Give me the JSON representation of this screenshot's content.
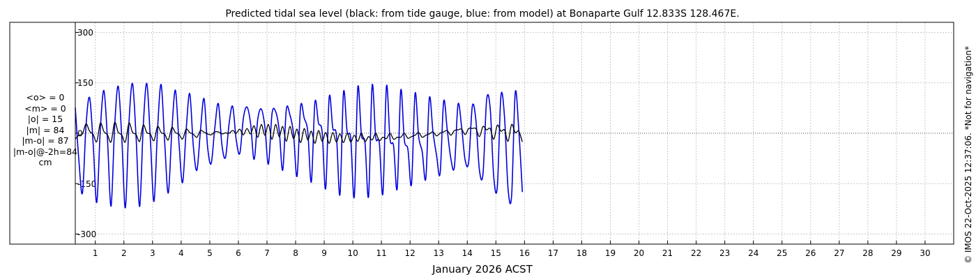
{
  "chart_data": {
    "type": "line",
    "title": "Predicted tidal sea level (black: from tide gauge, blue: from model) at Bonaparte Gulf 12.833S 128.467E.",
    "xlabel": "January 2026 ACST",
    "ylabel": "",
    "ylim": [
      -330,
      330
    ],
    "yticks": [
      -300,
      -150,
      0,
      150,
      300
    ],
    "ytick_labels": [
      "-300",
      "-150",
      "0",
      "150",
      "300"
    ],
    "xlim_days": [
      0.3,
      31.0
    ],
    "xticks": [
      1,
      2,
      3,
      4,
      5,
      6,
      7,
      8,
      9,
      10,
      11,
      12,
      13,
      14,
      15,
      16,
      17,
      18,
      19,
      20,
      21,
      22,
      23,
      24,
      25,
      26,
      27,
      28,
      29,
      30
    ],
    "xtick_labels": [
      "1",
      "2",
      "3",
      "4",
      "5",
      "6",
      "7",
      "8",
      "9",
      "10",
      "11",
      "12",
      "13",
      "14",
      "15",
      "16",
      "17",
      "18",
      "19",
      "20",
      "21",
      "22",
      "23",
      "24",
      "25",
      "26",
      "27",
      "28",
      "29",
      "30"
    ],
    "grid": true,
    "legend": "none",
    "series": [
      {
        "color": "#0000dd",
        "sampling_hours": 3,
        "t0_day": 0.3,
        "values": [
          76,
          -80,
          -178,
          23,
          106,
          -32,
          -206,
          12,
          127,
          -18,
          -217,
          20,
          140,
          -14,
          -222,
          30,
          148,
          -12,
          -218,
          22,
          148,
          -20,
          -203,
          12,
          145,
          -28,
          -178,
          8,
          128,
          -30,
          -147,
          10,
          118,
          -38,
          -110,
          8,
          103,
          -42,
          -90,
          15,
          88,
          -35,
          -72,
          28,
          80,
          -20,
          -60,
          45,
          78,
          30,
          -78,
          40,
          72,
          20,
          -92,
          58,
          65,
          10,
          -110,
          70,
          55,
          0,
          -128,
          80,
          45,
          5,
          -145,
          92,
          30,
          5,
          -165,
          108,
          15,
          -5,
          -183,
          122,
          5,
          -14,
          -190,
          137,
          -5,
          -28,
          -188,
          142,
          -12,
          -28,
          -180,
          140,
          -18,
          -38,
          -165,
          128,
          -20,
          -48,
          -152,
          118,
          -10,
          -55,
          -135,
          105,
          5,
          -65,
          -120,
          95,
          10,
          -75,
          -100,
          85,
          20,
          -80,
          -85,
          80,
          40,
          -110,
          -120,
          98,
          75,
          -130,
          -160,
          110,
          50,
          -165,
          -185,
          120,
          10,
          -175
        ]
      },
      {
        "color": "#000000",
        "sampling_hours": 3,
        "t0_day": 0.3,
        "values": [
          -17,
          -6,
          -2,
          28,
          6,
          -4,
          -25,
          30,
          5,
          -5,
          -26,
          32,
          3,
          -5,
          -26,
          30,
          3,
          -4,
          -24,
          24,
          2,
          -3,
          -22,
          20,
          2,
          -3,
          -20,
          17,
          2,
          -3,
          -17,
          12,
          2,
          -3,
          -12,
          8,
          3,
          -2,
          -5,
          4,
          4,
          -2,
          1,
          0,
          8,
          0,
          12,
          -5,
          14,
          -2,
          22,
          -12,
          26,
          -6,
          26,
          -18,
          26,
          -10,
          20,
          -24,
          20,
          -16,
          12,
          -28,
          14,
          -20,
          6,
          -30,
          8,
          -24,
          2,
          -30,
          2,
          -26,
          -2,
          -28,
          0,
          -26,
          -6,
          -24,
          0,
          -25,
          -10,
          -20,
          0,
          -22,
          -12,
          -16,
          0,
          -18,
          -12,
          -12,
          0,
          -15,
          -10,
          -6,
          2,
          -12,
          -6,
          -2,
          4,
          -8,
          0,
          4,
          8,
          -6,
          8,
          10,
          12,
          -4,
          14,
          14,
          14,
          -10,
          20,
          10,
          14,
          -18,
          24,
          6,
          10,
          -24,
          26,
          2,
          6,
          -26
        ]
      }
    ]
  },
  "stats": {
    "lines": [
      "<o> = 0",
      "<m> = 0",
      "|o| = 15",
      "|m| = 84",
      "|m-o| = 87",
      "|m-o|@-2h=84",
      "cm"
    ]
  },
  "copyright": "© IMOS 22-Oct-2025 12:37:06. *Not for navigation*"
}
